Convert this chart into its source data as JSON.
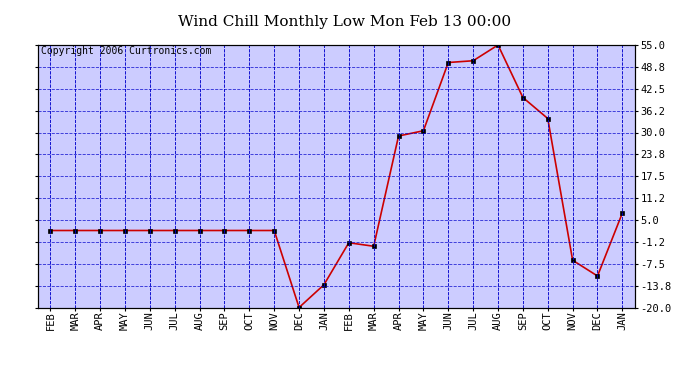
{
  "title": "Wind Chill Monthly Low Mon Feb 13 00:00",
  "copyright": "Copyright 2006 Curtronics.com",
  "labels": [
    "FEB",
    "MAR",
    "APR",
    "MAY",
    "JUN",
    "JUL",
    "AUG",
    "SEP",
    "OCT",
    "NOV",
    "DEC",
    "JAN",
    "FEB",
    "MAR",
    "APR",
    "MAY",
    "JUN",
    "JUL",
    "AUG",
    "SEP",
    "OCT",
    "NOV",
    "DEC",
    "JAN"
  ],
  "values": [
    2.0,
    2.0,
    2.0,
    2.0,
    2.0,
    2.0,
    2.0,
    2.0,
    2.0,
    2.0,
    -20.0,
    -13.5,
    -1.5,
    -2.5,
    29.0,
    30.5,
    50.0,
    50.5,
    55.0,
    40.0,
    34.0,
    -6.5,
    -11.0,
    7.0
  ],
  "ylim_min": -20.0,
  "ylim_max": 55.0,
  "yticks": [
    55.0,
    48.8,
    42.5,
    36.2,
    30.0,
    23.8,
    17.5,
    11.2,
    5.0,
    -1.2,
    -7.5,
    -13.8,
    -20.0
  ],
  "line_color": "#cc0000",
  "marker_color": "#000000",
  "bg_color": "#ccccff",
  "grid_color": "#0000cc",
  "outer_bg": "#ffffff",
  "title_fontsize": 11,
  "tick_fontsize": 7.5,
  "copyright_fontsize": 7
}
